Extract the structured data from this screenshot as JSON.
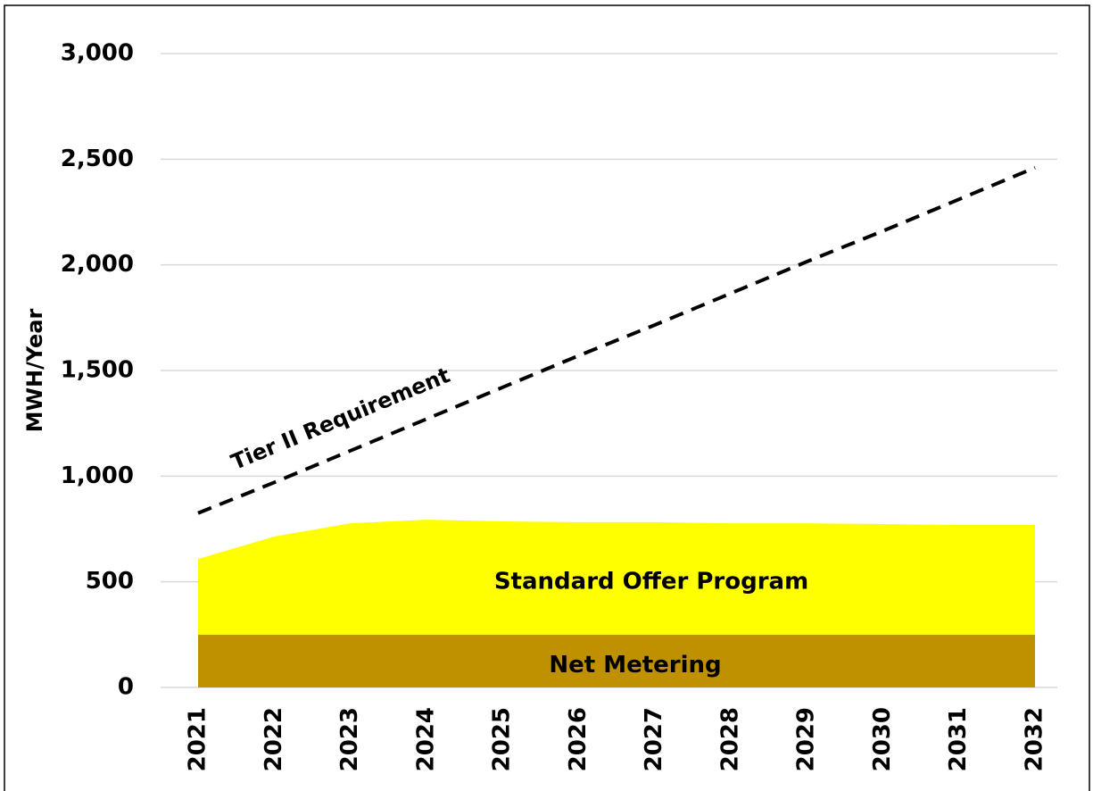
{
  "chart_data": {
    "type": "stacked_area_line",
    "y_label": "MWH/Year",
    "categories": [
      "2021",
      "2022",
      "2023",
      "2024",
      "2025",
      "2026",
      "2027",
      "2028",
      "2029",
      "2030",
      "2031",
      "2032"
    ],
    "series": [
      {
        "name": "Net Metering",
        "color": "#bf9000",
        "values": [
          250,
          250,
          250,
          250,
          250,
          250,
          250,
          250,
          250,
          250,
          250,
          250
        ]
      },
      {
        "name": "Standard Offer Program",
        "color": "#ffff00",
        "values": [
          358,
          464,
          527,
          544,
          536,
          532,
          532,
          527,
          527,
          523,
          519,
          519
        ]
      },
      {
        "name": "Tier II Requirement",
        "color": "#000000",
        "style": "dashed",
        "values": [
          825,
          970,
          1120,
          1270,
          1420,
          1570,
          1715,
          1865,
          2015,
          2160,
          2310,
          2460
        ]
      }
    ],
    "ylim": [
      0,
      3000
    ],
    "yticks": [
      0,
      500,
      {
        "value": 1000,
        "label": "1,000"
      },
      {
        "value": 1500,
        "label": "1,500"
      },
      {
        "value": 2000,
        "label": "2,000"
      },
      {
        "value": 2500,
        "label": "2,500"
      },
      {
        "value": 3000,
        "label": "3,000"
      }
    ],
    "grid": true
  }
}
